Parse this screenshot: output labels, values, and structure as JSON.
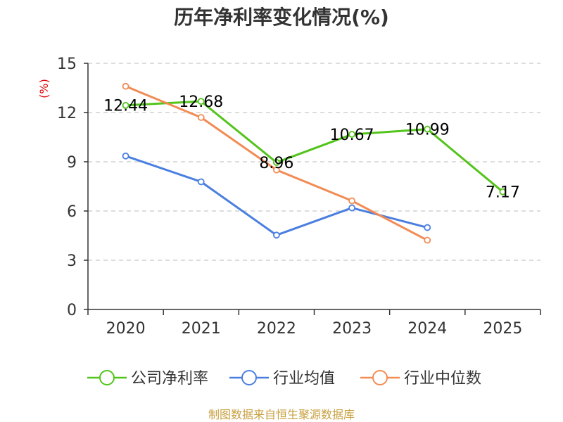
{
  "chart_data": {
    "type": "line",
    "title": "历年净利率变化情况(%)",
    "ylabel": "(%)",
    "xlabel": "",
    "categories": [
      "2020",
      "2021",
      "2022",
      "2023",
      "2024",
      "2025"
    ],
    "ylim": [
      0,
      15
    ],
    "yticks": [
      0,
      3,
      6,
      9,
      12,
      15
    ],
    "grid": true,
    "legend_position": "bottom",
    "series": [
      {
        "name": "公司净利率",
        "color": "#52c41a",
        "labels": true,
        "values": [
          12.44,
          12.68,
          8.96,
          10.67,
          10.99,
          7.17
        ],
        "value_labels": [
          "12.44",
          "12.68",
          "8.96",
          "10.67",
          "10.99",
          "7.17"
        ]
      },
      {
        "name": "行业均值",
        "color": "#4a7fe0",
        "labels": false,
        "values": [
          9.35,
          7.78,
          4.53,
          6.19,
          4.99,
          null
        ]
      },
      {
        "name": "行业中位数",
        "color": "#f28b54",
        "labels": false,
        "values": [
          13.6,
          11.7,
          8.5,
          6.62,
          4.22,
          null
        ]
      }
    ]
  },
  "source": "制图数据来自恒生聚源数据库"
}
